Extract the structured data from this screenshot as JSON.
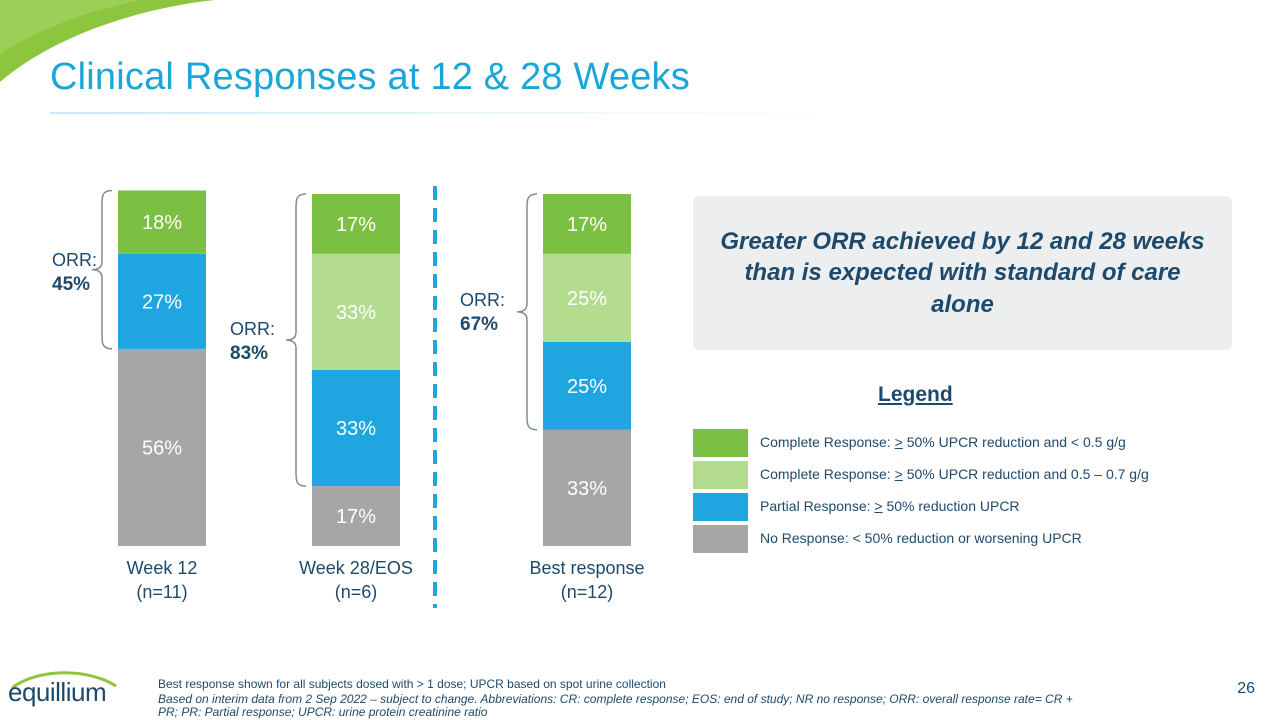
{
  "header": {
    "title": "Clinical Responses at 12 & 28 Weeks"
  },
  "colors": {
    "cr_low": "#7bc043",
    "cr_mid": "#b3dc8f",
    "pr": "#1fa6e0",
    "nr": "#a6a6a6",
    "accent": "#1aa7d8",
    "navy": "#1d4a6b"
  },
  "chart_data": {
    "type": "bar",
    "stacked": true,
    "categories": [
      "Week 12\n(n=11)",
      "Week 28/EOS\n(n=6)",
      "Best response\n(n=12)"
    ],
    "category_lines": [
      [
        "Week 12",
        "(n=11)"
      ],
      [
        "Week 28/EOS",
        "(n=6)"
      ],
      [
        "Best response",
        "(n=12)"
      ]
    ],
    "series": [
      {
        "name": "No Response",
        "color_key": "nr",
        "values": [
          56,
          17,
          33
        ]
      },
      {
        "name": "Partial Response",
        "color_key": "pr",
        "values": [
          27,
          33,
          25
        ]
      },
      {
        "name": "Complete Response 0.5 – 0.7 g/g",
        "color_key": "cr_mid",
        "values": [
          0,
          33,
          25
        ]
      },
      {
        "name": "Complete Response < 0.5 g/g",
        "color_key": "cr_low",
        "values": [
          18,
          17,
          17
        ]
      }
    ],
    "ylim": [
      0,
      100
    ],
    "orr": [
      {
        "label": "ORR:",
        "value": "45%"
      },
      {
        "label": "ORR:",
        "value": "83%"
      },
      {
        "label": "ORR:",
        "value": "67%"
      }
    ]
  },
  "callout": {
    "text": "Greater ORR achieved by 12 and 28 weeks than is expected with standard of care alone"
  },
  "legend": {
    "title": "Legend",
    "items": [
      {
        "color_key": "cr_low",
        "prefix": "Complete Response: ",
        "symbol": ">",
        "rest": " 50% UPCR reduction and < 0.5 g/g"
      },
      {
        "color_key": "cr_mid",
        "prefix": "Complete Response: ",
        "symbol": ">",
        "rest": " 50% UPCR reduction and  0.5 – 0.7 g/g"
      },
      {
        "color_key": "pr",
        "prefix": "Partial Response: ",
        "symbol": ">",
        "rest": " 50% reduction UPCR"
      },
      {
        "color_key": "nr",
        "prefix": "No Response: < 50% reduction or worsening UPCR",
        "symbol": "",
        "rest": ""
      }
    ]
  },
  "footer": {
    "note1": "Best response shown for all subjects dosed with > 1 dose; UPCR based on spot urine collection",
    "note2_line1": "Based on interim data from 2 Sep 2022 – subject to change. Abbreviations: CR: complete response; EOS: end of study; NR no response; ORR: overall response rate= CR +",
    "note2_line2": "PR; PR: Partial response; UPCR: urine protein creatinine ratio",
    "page_number": "26",
    "logo_text": "equillium"
  }
}
